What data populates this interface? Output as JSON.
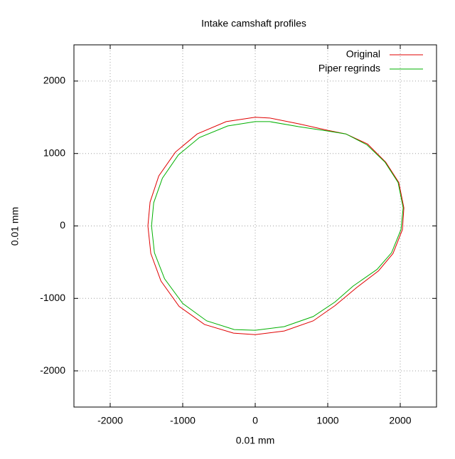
{
  "chart_data": {
    "type": "line",
    "title": "Intake camshaft profiles",
    "x_label": "0.01 mm",
    "y_label": "0.01 mm",
    "xlim": [
      -2500,
      2500
    ],
    "ylim": [
      -2500,
      2500
    ],
    "xticks": [
      -2000,
      -1000,
      0,
      1000,
      2000
    ],
    "yticks": [
      -2000,
      -1000,
      0,
      1000,
      2000
    ],
    "grid": true,
    "legend": "top-right",
    "series": [
      {
        "name": "Original",
        "color": "#e00000",
        "x": [
          -1480,
          -1440,
          -1300,
          -1050,
          -700,
          -300,
          0,
          400,
          800,
          1100,
          1400,
          1700,
          1900,
          2030,
          2050,
          1980,
          1800,
          1550,
          1250,
          1000,
          600,
          200,
          0,
          -400,
          -800,
          -1100,
          -1330,
          -1450,
          -1480
        ],
        "values": [
          0,
          -380,
          -760,
          -1110,
          -1360,
          -1480,
          -1500,
          -1450,
          -1310,
          -1100,
          -850,
          -620,
          -380,
          -50,
          250,
          600,
          880,
          1130,
          1270,
          1320,
          1410,
          1490,
          1500,
          1440,
          1270,
          1020,
          690,
          330,
          0
        ]
      },
      {
        "name": "Piper regrinds",
        "color": "#00b000",
        "x": [
          -1430,
          -1390,
          -1250,
          -1000,
          -670,
          -290,
          0,
          400,
          800,
          1100,
          1350,
          1680,
          1880,
          2010,
          2040,
          1970,
          1790,
          1540,
          1250,
          1000,
          600,
          200,
          0,
          -380,
          -770,
          -1060,
          -1280,
          -1400,
          -1430
        ],
        "values": [
          0,
          -370,
          -730,
          -1070,
          -1310,
          -1430,
          -1440,
          -1390,
          -1250,
          -1050,
          -830,
          -600,
          -370,
          -50,
          250,
          600,
          880,
          1120,
          1270,
          1310,
          1370,
          1440,
          1440,
          1380,
          1220,
          980,
          660,
          320,
          0
        ]
      }
    ]
  }
}
